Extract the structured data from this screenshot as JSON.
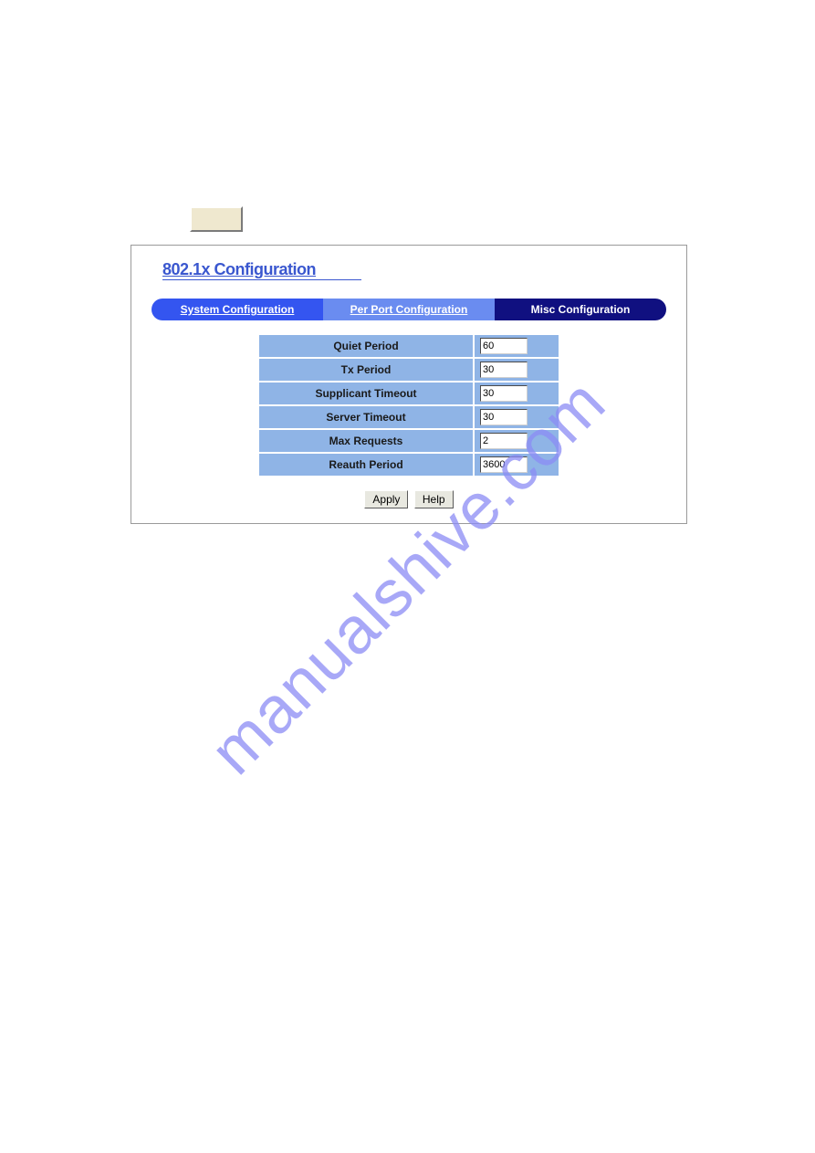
{
  "colors": {
    "page_bg": "#ffffff",
    "bevel_bg": "#efe8cf",
    "panel_border": "#9a9a9a",
    "title_color": "#3a57cf",
    "tab_left_bg": "#3455f0",
    "tab_mid_bg": "#6a8cf0",
    "tab_right_bg": "#101080",
    "tab_text": "#ffffff",
    "cell_bg": "#8fb4e6",
    "cell_border": "#ffffff",
    "cell_text": "#1a1a1a",
    "input_bg": "#ffffff",
    "btn_bg": "#e8e8e0",
    "watermark_color": "#8b8cf5"
  },
  "panel": {
    "title": "802.1x Configuration",
    "tabs": {
      "system": "System Configuration",
      "perport": "Per Port Configuration",
      "misc": "Misc Configuration"
    },
    "rows": {
      "quiet": {
        "label": "Quiet Period",
        "value": "60"
      },
      "tx": {
        "label": "Tx Period",
        "value": "30"
      },
      "supp": {
        "label": "Supplicant Timeout",
        "value": "30"
      },
      "server": {
        "label": "Server Timeout",
        "value": "30"
      },
      "maxreq": {
        "label": "Max Requests",
        "value": "2"
      },
      "reauth": {
        "label": "Reauth Period",
        "value": "3600"
      }
    },
    "buttons": {
      "apply": "Apply",
      "help": "Help"
    }
  },
  "watermark": "manualshive.com"
}
